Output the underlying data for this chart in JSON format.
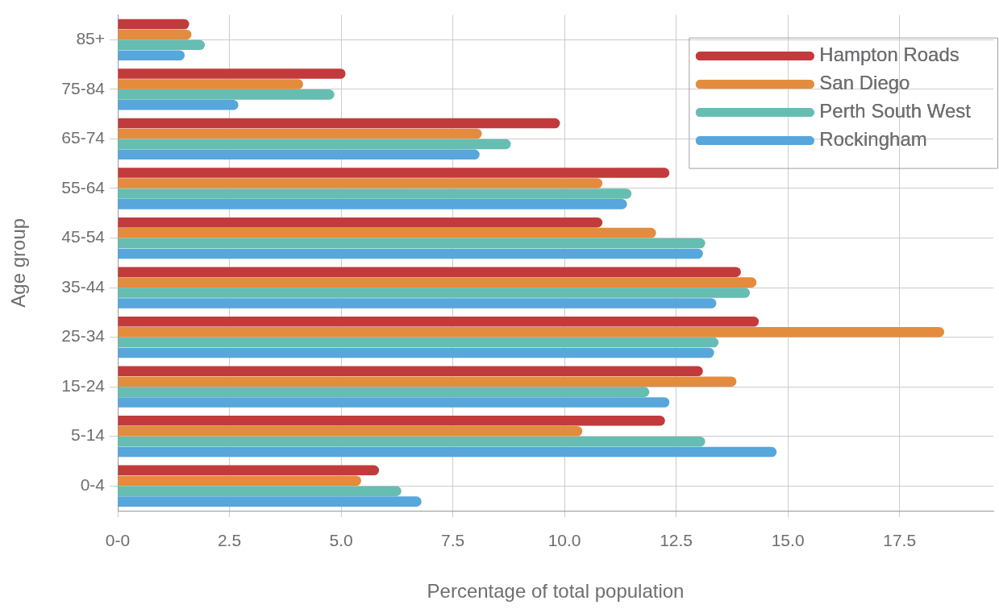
{
  "chart_data": {
    "type": "bar",
    "orientation": "horizontal",
    "xlabel": "Percentage of total population",
    "ylabel": "Age group",
    "categories": [
      "85+",
      "75-84",
      "65-74",
      "55-64",
      "45-54",
      "35-44",
      "25-34",
      "15-24",
      "5-14",
      "0-4"
    ],
    "series": [
      {
        "name": "Hampton Roads",
        "color": "#c23b3c",
        "values": [
          1.6,
          5.1,
          9.9,
          12.35,
          10.85,
          13.95,
          14.35,
          13.1,
          12.25,
          5.85
        ]
      },
      {
        "name": "San Diego",
        "color": "#e38c3d",
        "values": [
          1.65,
          4.15,
          8.15,
          10.85,
          12.05,
          14.3,
          18.5,
          13.85,
          10.4,
          5.45
        ]
      },
      {
        "name": "Perth South West",
        "color": "#66bdb1",
        "values": [
          1.95,
          4.85,
          8.8,
          11.5,
          13.15,
          14.15,
          13.45,
          11.9,
          13.15,
          6.35
        ]
      },
      {
        "name": "Rockingham",
        "color": "#57a6dc",
        "values": [
          1.5,
          2.7,
          8.1,
          11.4,
          13.1,
          13.4,
          13.35,
          12.35,
          14.75,
          6.8
        ]
      }
    ],
    "xlim": [
      0,
      19.6
    ],
    "xticks": [
      {
        "value": 0,
        "label": "0-0"
      },
      2.5,
      {
        "value": 5,
        "label": "5.0"
      },
      7.5,
      {
        "value": 10,
        "label": "10.0"
      },
      12.5,
      {
        "value": 15,
        "label": "15.0"
      },
      17.5
    ],
    "grid": true,
    "legend": "top right"
  }
}
